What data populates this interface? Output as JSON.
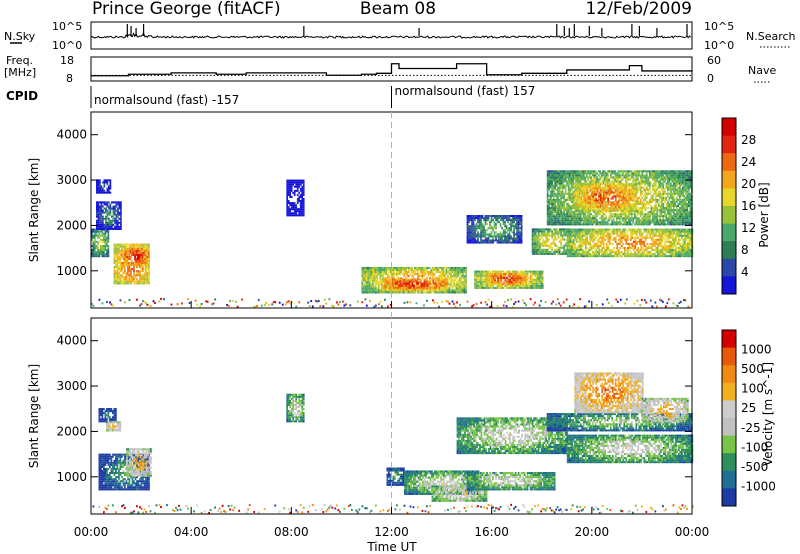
{
  "header": {
    "station": "Prince George (fitACF)",
    "beam": "Beam 08",
    "date": "12/Feb/2009"
  },
  "panel_labels": {
    "nsky": "N.Sky",
    "freq_line1": "Freq.",
    "freq_line2": "[MHz]",
    "cpid": "CPID",
    "nsearch": "N.Search",
    "nave": "Nave"
  },
  "cpid_segments": [
    {
      "label": "normalsound (fast) -157",
      "start_hour": 0
    },
    {
      "label": "normalsound (fast) 157",
      "start_hour": 12
    }
  ],
  "noise_axis": {
    "ticks_left": [
      "10^5",
      "10^0"
    ],
    "ticks_right": [
      "10^5",
      "10^0"
    ]
  },
  "freq_axis": {
    "ticks_left": [
      "18",
      "8"
    ],
    "ticks_right": [
      "60",
      "0"
    ]
  },
  "colors": {
    "power_scale": [
      "#1515d8",
      "#2a48a8",
      "#2e7d55",
      "#4aa86a",
      "#98c23a",
      "#e8d62a",
      "#f3a51c",
      "#ee6a12",
      "#e2250f",
      "#d40000"
    ],
    "velocity_scale": [
      "#1d3ba3",
      "#1f6e93",
      "#2f8f5a",
      "#77c446",
      "#c0c0c0",
      "#cccccc",
      "#f0b020",
      "#f08a10",
      "#e85a0a",
      "#d40000"
    ]
  },
  "chart_data": [
    {
      "type": "line",
      "name": "noise-panel",
      "series": [
        {
          "name": "N.Sky",
          "x": [
            0,
            1.4,
            2.4,
            8,
            12,
            18.5,
            21.5,
            24
          ],
          "y": [
            1,
            3,
            1.5,
            1,
            1,
            1,
            1,
            1
          ]
        },
        {
          "name": "N.Search",
          "x": [
            0,
            24
          ],
          "y": [
            0,
            0
          ]
        }
      ],
      "xlim": [
        0,
        24
      ],
      "ylim_left": [
        "10^0",
        "10^5"
      ],
      "ylim_right": [
        "10^0",
        "10^5"
      ]
    },
    {
      "type": "line",
      "name": "frequency-panel",
      "series": [
        {
          "name": "Freq",
          "x": [
            0,
            1.5,
            3.2,
            5,
            6.2,
            9.4,
            10.8,
            11.4,
            12,
            12.3,
            14.6,
            15.8,
            17.2,
            19,
            21.5,
            22,
            24
          ],
          "y": [
            10.2,
            10.8,
            11.4,
            10.8,
            11.4,
            10.4,
            10.8,
            11.2,
            15.2,
            13.2,
            15.2,
            10.6,
            11.2,
            12.6,
            14.4,
            12.2,
            12.6
          ]
        },
        {
          "name": "Nave",
          "x": [
            0,
            24
          ],
          "y": [
            14,
            14
          ]
        }
      ],
      "xlim": [
        0,
        24
      ],
      "ylim_left": [
        8,
        18
      ],
      "ylim_right": [
        0,
        60
      ]
    },
    {
      "type": "heatmap",
      "name": "power",
      "xlabel": "",
      "ylabel": "Slant Range [km]",
      "xlim": [
        0,
        24
      ],
      "ylim": [
        180,
        4500
      ],
      "yticks": [
        1000,
        2000,
        3000,
        4000
      ],
      "colorbar_label": "Power [dB]",
      "colorbar_ticks": [
        "4",
        "8",
        "12",
        "16",
        "20",
        "24",
        "28"
      ],
      "blobs": [
        {
          "x0": 0.0,
          "x1": 0.7,
          "r0": 1300,
          "r1": 1900,
          "level": 5
        },
        {
          "x0": 0.9,
          "x1": 2.3,
          "r0": 700,
          "r1": 1600,
          "level": 8
        },
        {
          "x0": 1.3,
          "x1": 2.3,
          "r0": 1100,
          "r1": 1500,
          "level": 9
        },
        {
          "x0": 0.2,
          "x1": 1.2,
          "r0": 1900,
          "r1": 2500,
          "level": 3
        },
        {
          "x0": 0.2,
          "x1": 0.8,
          "r0": 2700,
          "r1": 3000,
          "level": 2
        },
        {
          "x0": 7.8,
          "x1": 8.5,
          "r0": 2200,
          "r1": 3000,
          "level": 1
        },
        {
          "x0": 10.8,
          "x1": 15.0,
          "r0": 500,
          "r1": 1050,
          "level": 7
        },
        {
          "x0": 11.6,
          "x1": 14.2,
          "r0": 560,
          "r1": 800,
          "level": 9
        },
        {
          "x0": 15.3,
          "x1": 18.0,
          "r0": 600,
          "r1": 1000,
          "level": 7
        },
        {
          "x0": 15.8,
          "x1": 17.4,
          "r0": 680,
          "r1": 920,
          "level": 9
        },
        {
          "x0": 15.0,
          "x1": 17.2,
          "r0": 1600,
          "r1": 2200,
          "level": 4
        },
        {
          "x0": 17.6,
          "x1": 19.2,
          "r0": 1350,
          "r1": 1900,
          "level": 6
        },
        {
          "x0": 19.0,
          "x1": 24.0,
          "r0": 1300,
          "r1": 1900,
          "level": 7
        },
        {
          "x0": 18.2,
          "x1": 24.0,
          "r0": 2000,
          "r1": 3200,
          "level": 6
        },
        {
          "x0": 19.3,
          "x1": 21.8,
          "r0": 2300,
          "r1": 2900,
          "level": 8
        }
      ]
    },
    {
      "type": "heatmap",
      "name": "velocity",
      "xlabel": "Time UT",
      "ylabel": "Slant Range [km]",
      "xlim": [
        0,
        24
      ],
      "ylim": [
        180,
        4500
      ],
      "xticks": [
        "00:00",
        "04:00",
        "08:00",
        "12:00",
        "16:00",
        "20:00",
        "00:00"
      ],
      "yticks": [
        1000,
        2000,
        3000,
        4000
      ],
      "colorbar_label": "Velocity [m s^-1]",
      "colorbar_ticks": [
        "-1000",
        "-500",
        "-100",
        "-25",
        "25",
        "100",
        "500",
        "1000"
      ],
      "blobs": [
        {
          "x0": 0.3,
          "x1": 2.3,
          "r0": 700,
          "r1": 1500,
          "level": 3
        },
        {
          "x0": 1.4,
          "x1": 2.4,
          "r0": 1000,
          "r1": 1600,
          "level": 7
        },
        {
          "x0": 0.3,
          "x1": 1.0,
          "r0": 2200,
          "r1": 2500,
          "level": 2
        },
        {
          "x0": 0.6,
          "x1": 1.2,
          "r0": 2000,
          "r1": 2200,
          "level": 7
        },
        {
          "x0": 7.8,
          "x1": 8.5,
          "r0": 2200,
          "r1": 2800,
          "level": 5
        },
        {
          "x0": 11.8,
          "x1": 12.5,
          "r0": 800,
          "r1": 1200,
          "level": 3
        },
        {
          "x0": 12.5,
          "x1": 15.5,
          "r0": 600,
          "r1": 1100,
          "level": 5
        },
        {
          "x0": 13.6,
          "x1": 15.8,
          "r0": 450,
          "r1": 800,
          "level": 6
        },
        {
          "x0": 15.0,
          "x1": 18.5,
          "r0": 700,
          "r1": 1100,
          "level": 5
        },
        {
          "x0": 14.6,
          "x1": 19.0,
          "r0": 1500,
          "r1": 2300,
          "level": 5
        },
        {
          "x0": 19.0,
          "x1": 24.0,
          "r0": 1300,
          "r1": 1900,
          "level": 5
        },
        {
          "x0": 18.2,
          "x1": 24.0,
          "r0": 2000,
          "r1": 2400,
          "level": 4
        },
        {
          "x0": 19.3,
          "x1": 22.0,
          "r0": 2400,
          "r1": 3300,
          "level": 8
        },
        {
          "x0": 22.0,
          "x1": 23.8,
          "r0": 2200,
          "r1": 2700,
          "level": 7
        }
      ]
    }
  ]
}
